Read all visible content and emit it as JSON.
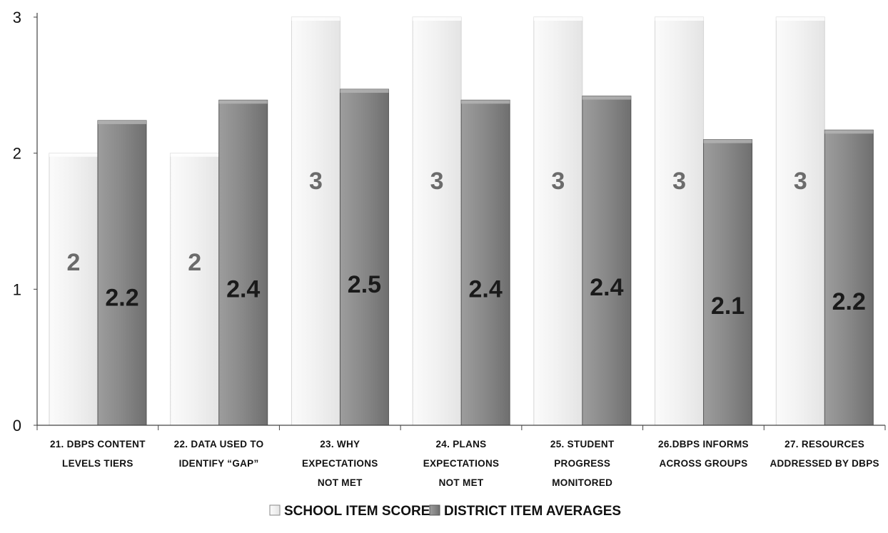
{
  "chart_data": {
    "type": "bar",
    "categories": [
      [
        "21.  DBPS CONTENT",
        "LEVELS TIERS"
      ],
      [
        "22. DATA USED TO",
        "IDENTIFY “GAP”"
      ],
      [
        "23. WHY",
        "EXPECTATIONS",
        "NOT MET"
      ],
      [
        "24. PLANS",
        "EXPECTATIONS",
        "NOT MET"
      ],
      [
        "25. STUDENT",
        "PROGRESS",
        "MONITORED"
      ],
      [
        "26.DBPS INFORMS",
        "ACROSS GROUPS"
      ],
      [
        "27. RESOURCES",
        "ADDRESSED BY DBPS"
      ]
    ],
    "series": [
      {
        "name": "SCHOOL ITEM SCORE",
        "values": [
          2,
          2,
          3,
          3,
          3,
          3,
          3
        ],
        "labels": [
          "2",
          "2",
          "3",
          "3",
          "3",
          "3",
          "3"
        ],
        "color": "#f3f3f3",
        "label_color": "#6b6b6b"
      },
      {
        "name": "DISTRICT ITEM AVERAGES",
        "values": [
          2.24,
          2.39,
          2.47,
          2.39,
          2.42,
          2.1,
          2.17
        ],
        "labels": [
          "2.2",
          "2.4",
          "2.5",
          "2.4",
          "2.4",
          "2.1",
          "2.2"
        ],
        "color": "#8a8a8a",
        "label_color": "#1a1a1a"
      }
    ],
    "y_ticks": [
      "0",
      "1",
      "2",
      "3"
    ],
    "ylim": [
      0,
      3
    ],
    "grid": false,
    "legend_position": "bottom"
  }
}
